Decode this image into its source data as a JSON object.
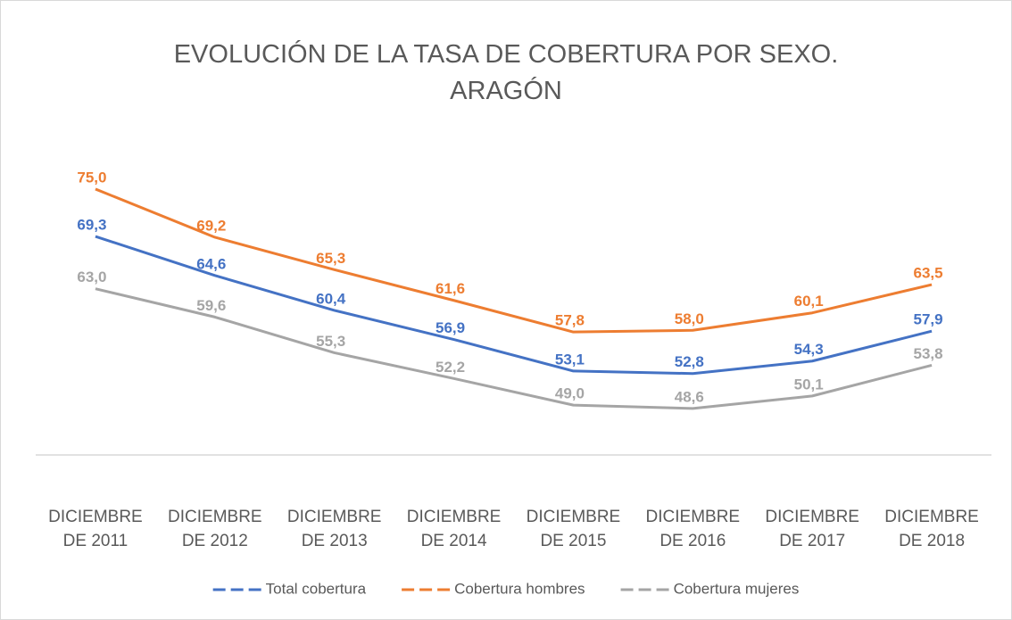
{
  "chart_data": {
    "type": "line",
    "title": "EVOLUCIÓN DE LA TASA DE COBERTURA POR SEXO. ARAGÓN",
    "categories": [
      "DICIEMBRE DE 2011",
      "DICIEMBRE DE 2012",
      "DICIEMBRE DE 2013",
      "DICIEMBRE DE 2014",
      "DICIEMBRE DE 2015",
      "DICIEMBRE DE 2016",
      "DICIEMBRE DE 2017",
      "DICIEMBRE DE 2018"
    ],
    "series": [
      {
        "name": "Total cobertura",
        "color": "#4472c4",
        "values": [
          69.3,
          64.6,
          60.4,
          56.9,
          53.1,
          52.8,
          54.3,
          57.9
        ],
        "value_labels": [
          "69,3",
          "64,6",
          "60,4",
          "56,9",
          "53,1",
          "52,8",
          "54,3",
          "57,9"
        ]
      },
      {
        "name": "Cobertura hombres",
        "color": "#ed7d31",
        "values": [
          75.0,
          69.2,
          65.3,
          61.6,
          57.8,
          58.0,
          60.1,
          63.5
        ],
        "value_labels": [
          "75,0",
          "69,2",
          "65,3",
          "61,6",
          "57,8",
          "58,0",
          "60,1",
          "63,5"
        ]
      },
      {
        "name": "Cobertura mujeres",
        "color": "#a5a5a5",
        "values": [
          63.0,
          59.6,
          55.3,
          52.2,
          49.0,
          48.6,
          50.1,
          53.8
        ],
        "value_labels": [
          "63,0",
          "59,6",
          "55,3",
          "52,2",
          "49,0",
          "48,6",
          "50,1",
          "53,8"
        ]
      }
    ],
    "ylim": [
      43,
      78
    ],
    "legend": "bottom"
  }
}
